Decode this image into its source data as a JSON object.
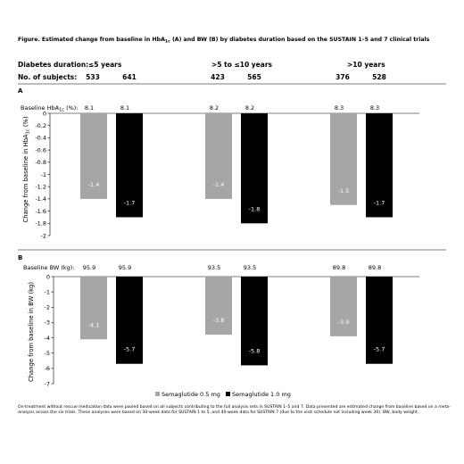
{
  "figure_title": "Figure. Estimated change from baseline in HbA1c (A) and BW (B) by diabetes duration based on the SUSTAIN 1–5 and 7 clinical trials",
  "header": {
    "duration_label": "Diabetes duration:",
    "subjects_label": "No. of subjects:",
    "groups": [
      {
        "label": "≤5 years",
        "subjects": [
          "533",
          "641"
        ]
      },
      {
        "label": ">5 to ≤10 years",
        "subjects": [
          "423",
          "565"
        ]
      },
      {
        "label": ">10 years",
        "subjects": [
          "376",
          "528"
        ]
      }
    ]
  },
  "legend": {
    "items": [
      {
        "label": "Semaglutide 0.5 mg",
        "color": "#a6a6a6"
      },
      {
        "label": "Semaglutide 1.0 mg",
        "color": "#000000"
      }
    ]
  },
  "footnote": "On-treatment without rescue medication data were pooled based on all subjects contributing to the full analysis sets in SUSTAIN 1–5 and 7. Data presented are estimated change from baseline based on a meta-analysis across the six trials. These analyses were based on 30-week data for SUSTAIN 1 to 5, and 40-week data for SUSTAIN 7 (due to the visit schedule not including week 30). BW, body weight.",
  "chart_data": [
    {
      "type": "bar",
      "panel": "A",
      "baseline_label": "Baseline HbA1c (%):",
      "baseline_values": [
        "8.1",
        "8.1",
        "8.2",
        "8.2",
        "8.3",
        "8.3"
      ],
      "categories": [
        "≤5 years",
        ">5 to ≤10 years",
        ">10 years"
      ],
      "series": [
        {
          "name": "Semaglutide 0.5 mg",
          "values": [
            -1.4,
            -1.4,
            -1.5
          ],
          "labels": [
            "-1.4",
            "-1.4",
            "-1.5"
          ],
          "color": "#a6a6a6"
        },
        {
          "name": "Semaglutide 1.0 mg",
          "values": [
            -1.7,
            -1.8,
            -1.7
          ],
          "labels": [
            "-1.7",
            "-1.8",
            "-1.7"
          ],
          "color": "#000000"
        }
      ],
      "ylabel": "Change from baseline in HbA1c (%)",
      "ylim": [
        -2,
        0
      ],
      "yticks": [
        0,
        -0.2,
        -0.4,
        -0.6,
        -0.8,
        -1,
        -1.2,
        -1.4,
        -1.6,
        -1.8,
        -2
      ],
      "ytick_labels": [
        "0",
        "-0.2",
        "-0.4",
        "-0.6",
        "-0.8",
        "-1",
        "-1.2",
        "-1.4",
        "-1.6",
        "-1.8",
        "-2"
      ]
    },
    {
      "type": "bar",
      "panel": "B",
      "baseline_label": "Baseline BW (kg):",
      "baseline_values": [
        "95.9",
        "95.9",
        "93.5",
        "93.5",
        "89.8",
        "89.8"
      ],
      "categories": [
        "≤5 years",
        ">5 to ≤10 years",
        ">10 years"
      ],
      "series": [
        {
          "name": "Semaglutide 0.5 mg",
          "values": [
            -4.1,
            -3.8,
            -3.9
          ],
          "labels": [
            "-4.1",
            "-3.8",
            "-3.9"
          ],
          "color": "#a6a6a6"
        },
        {
          "name": "Semaglutide 1.0 mg",
          "values": [
            -5.7,
            -5.8,
            -5.7
          ],
          "labels": [
            "-5.7",
            "-5.8",
            "-5.7"
          ],
          "color": "#000000"
        }
      ],
      "ylabel": "Change from baseline in BW (kg)",
      "ylim": [
        -7,
        0
      ],
      "yticks": [
        0,
        -1,
        -2,
        -3,
        -4,
        -5,
        -6,
        -7
      ],
      "ytick_labels": [
        "0",
        "-1",
        "-2",
        "-3",
        "-4",
        "-5",
        "-6",
        "-7"
      ]
    }
  ]
}
